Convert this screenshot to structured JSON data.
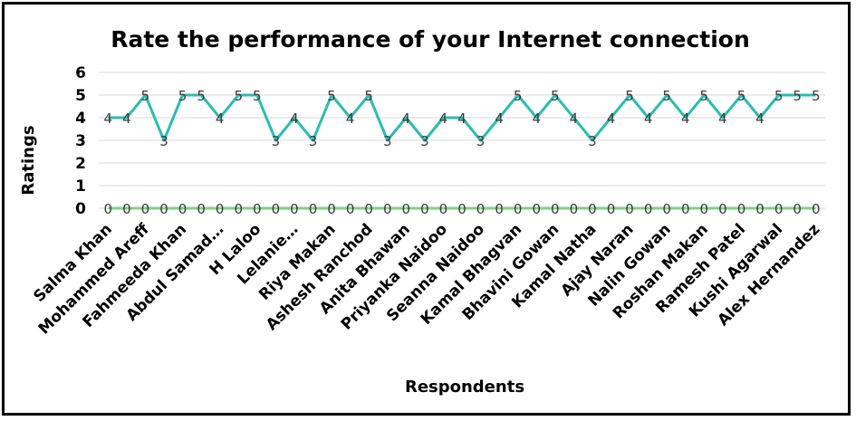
{
  "chart_data": {
    "type": "line",
    "title": "Rate the performance of your Internet connection",
    "xlabel": "Respondents",
    "ylabel": "Ratings",
    "ylim": [
      0,
      6
    ],
    "yticks": [
      "0",
      "1",
      "2",
      "3",
      "4",
      "5",
      "6"
    ],
    "grid": true,
    "legend": "none",
    "categories": [
      "Salma Khan",
      "",
      "Mohammed Areff",
      "",
      "Fahmeeda Khan",
      "",
      "Abdul Samad…",
      "",
      "H Laloo",
      "",
      "Lelanie…",
      "",
      "Riya Makan",
      "",
      "Ashesh Ranchod",
      "",
      "Anita Bhawan",
      "",
      "Priyanka Naidoo",
      "",
      "Seanna Naidoo",
      "",
      "Kamal Bhagvan",
      "",
      "Bhavini Gowan",
      "",
      "Kamal Natha",
      "",
      "Ajay Naran",
      "",
      "Nalin Gowan",
      "",
      "Roshan Makan",
      "",
      "Ramesh Patel",
      "",
      "Kushi Agarwal",
      "",
      "Alex Hernandez"
    ],
    "series": [
      {
        "color": "#2bbdb0",
        "values": [
          4,
          4,
          5,
          3,
          5,
          5,
          4,
          5,
          5,
          3,
          4,
          3,
          5,
          4,
          5,
          3,
          4,
          3,
          4,
          4,
          3,
          4,
          5,
          4,
          5,
          4,
          3,
          4,
          5,
          4,
          5,
          4,
          5,
          4,
          5,
          4,
          5,
          5,
          5
        ]
      },
      {
        "color": "#7fd186",
        "values": [
          0,
          0,
          0,
          0,
          0,
          0,
          0,
          0,
          0,
          0,
          0,
          0,
          0,
          0,
          0,
          0,
          0,
          0,
          0,
          0,
          0,
          0,
          0,
          0,
          0,
          0,
          0,
          0,
          0,
          0,
          0,
          0,
          0,
          0,
          0,
          0,
          0,
          0,
          0
        ]
      }
    ]
  }
}
